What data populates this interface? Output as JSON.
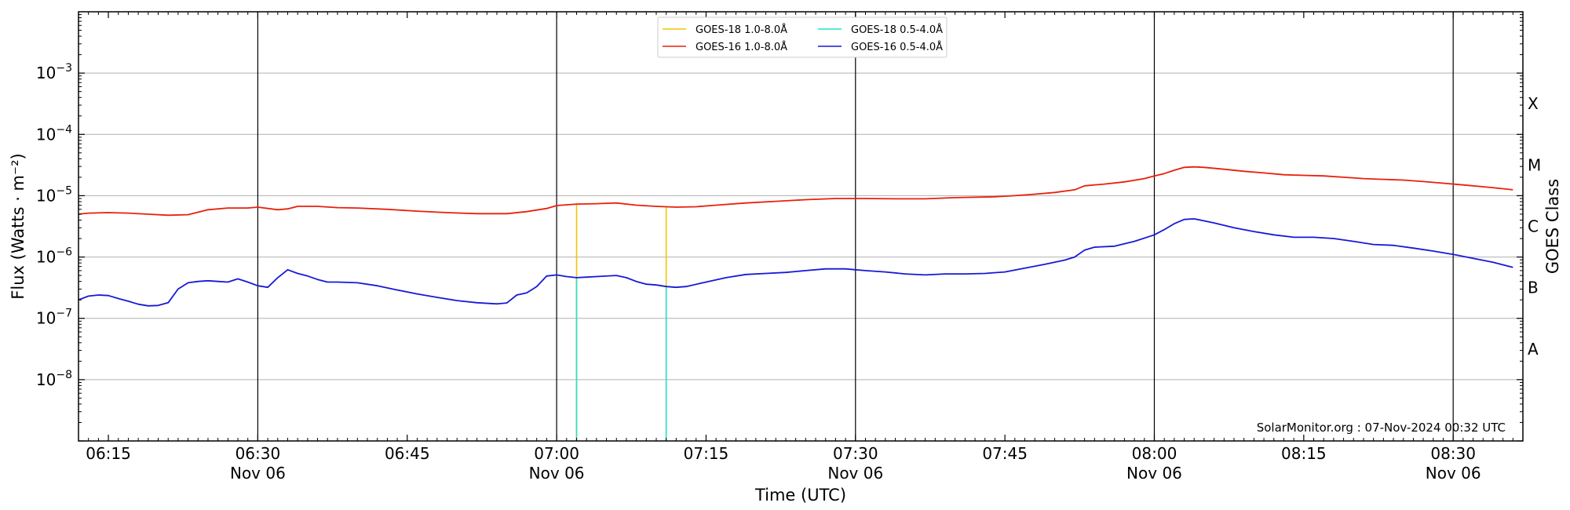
{
  "chart_data": {
    "type": "line",
    "title": "",
    "xlabel": "Time (UTC)",
    "ylabel": "Flux (Watts · m⁻²)",
    "y2label": "GOES Class",
    "yscale": "log",
    "xlim": [
      "06:12",
      "08:37"
    ],
    "ylim": [
      1e-09,
      0.01
    ],
    "grid": {
      "y_major": true,
      "x_day_lines": true
    },
    "legend_position": "top-center",
    "x_ticks": [
      {
        "time": "06:15",
        "label": "06:15",
        "sublabel": ""
      },
      {
        "time": "06:30",
        "label": "06:30",
        "sublabel": "Nov 06"
      },
      {
        "time": "06:45",
        "label": "06:45",
        "sublabel": ""
      },
      {
        "time": "07:00",
        "label": "07:00",
        "sublabel": "Nov 06"
      },
      {
        "time": "07:15",
        "label": "07:15",
        "sublabel": ""
      },
      {
        "time": "07:30",
        "label": "07:30",
        "sublabel": "Nov 06"
      },
      {
        "time": "07:45",
        "label": "07:45",
        "sublabel": ""
      },
      {
        "time": "08:00",
        "label": "08:00",
        "sublabel": "Nov 06"
      },
      {
        "time": "08:15",
        "label": "08:15",
        "sublabel": ""
      },
      {
        "time": "08:30",
        "label": "08:30",
        "sublabel": "Nov 06"
      }
    ],
    "vertical_lines": [
      "06:30",
      "07:00",
      "07:30",
      "08:00",
      "08:30"
    ],
    "y_ticks": [
      {
        "value": 0.001,
        "base": "10",
        "exp": "−3"
      },
      {
        "value": 0.0001,
        "base": "10",
        "exp": "−4"
      },
      {
        "value": 1e-05,
        "base": "10",
        "exp": "−5"
      },
      {
        "value": 1e-06,
        "base": "10",
        "exp": "−6"
      },
      {
        "value": 1e-07,
        "base": "10",
        "exp": "−7"
      },
      {
        "value": 1e-08,
        "base": "10",
        "exp": "−8"
      }
    ],
    "goes_classes": [
      {
        "label": "X",
        "value": 0.000316
      },
      {
        "label": "M",
        "value": 3.16e-05
      },
      {
        "label": "C",
        "value": 3.16e-06
      },
      {
        "label": "B",
        "value": 3.16e-07
      },
      {
        "label": "A",
        "value": 3.16e-08
      }
    ],
    "annotation": "SolarMonitor.org : 07-Nov-2024 00:32 UTC",
    "series": [
      {
        "name": "GOES-18 1.0-8.0Å",
        "color": "#f5c400",
        "kind": "spikes",
        "points": [
          [
            "07:02",
            7.3e-06
          ],
          [
            "07:11",
            6.5e-06
          ]
        ],
        "floor": 1e-09
      },
      {
        "name": "GOES-18 0.5-4.0Å",
        "color": "#22e0d0",
        "kind": "spikes",
        "points": [
          [
            "07:02",
            4.7e-07
          ],
          [
            "07:11",
            3.3e-07
          ]
        ],
        "floor": 1e-09
      },
      {
        "name": "GOES-16 1.0-8.0Å",
        "color": "#e8200c",
        "kind": "line",
        "points": [
          [
            "06:12",
            5e-06
          ],
          [
            "06:13",
            5.2e-06
          ],
          [
            "06:15",
            5.3e-06
          ],
          [
            "06:17",
            5.2e-06
          ],
          [
            "06:19",
            5e-06
          ],
          [
            "06:21",
            4.8e-06
          ],
          [
            "06:23",
            4.9e-06
          ],
          [
            "06:25",
            5.9e-06
          ],
          [
            "06:27",
            6.3e-06
          ],
          [
            "06:29",
            6.3e-06
          ],
          [
            "06:30",
            6.5e-06
          ],
          [
            "06:32",
            5.9e-06
          ],
          [
            "06:33",
            6.1e-06
          ],
          [
            "06:34",
            6.7e-06
          ],
          [
            "06:36",
            6.7e-06
          ],
          [
            "06:38",
            6.4e-06
          ],
          [
            "06:40",
            6.3e-06
          ],
          [
            "06:43",
            6e-06
          ],
          [
            "06:46",
            5.6e-06
          ],
          [
            "06:49",
            5.3e-06
          ],
          [
            "06:52",
            5.1e-06
          ],
          [
            "06:55",
            5.1e-06
          ],
          [
            "06:57",
            5.5e-06
          ],
          [
            "06:59",
            6.2e-06
          ],
          [
            "07:00",
            6.9e-06
          ],
          [
            "07:02",
            7.3e-06
          ],
          [
            "07:04",
            7.4e-06
          ],
          [
            "07:06",
            7.6e-06
          ],
          [
            "07:08",
            7e-06
          ],
          [
            "07:10",
            6.7e-06
          ],
          [
            "07:12",
            6.5e-06
          ],
          [
            "07:14",
            6.6e-06
          ],
          [
            "07:16",
            7e-06
          ],
          [
            "07:19",
            7.6e-06
          ],
          [
            "07:22",
            8.1e-06
          ],
          [
            "07:25",
            8.6e-06
          ],
          [
            "07:28",
            9e-06
          ],
          [
            "07:31",
            9e-06
          ],
          [
            "07:34",
            8.9e-06
          ],
          [
            "07:37",
            8.9e-06
          ],
          [
            "07:40",
            9.3e-06
          ],
          [
            "07:44",
            9.6e-06
          ],
          [
            "07:46",
            1e-05
          ],
          [
            "07:48",
            1.06e-05
          ],
          [
            "07:50",
            1.13e-05
          ],
          [
            "07:52",
            1.25e-05
          ],
          [
            "07:53",
            1.45e-05
          ],
          [
            "07:55",
            1.55e-05
          ],
          [
            "07:57",
            1.68e-05
          ],
          [
            "07:59",
            1.9e-05
          ],
          [
            "08:00",
            2.1e-05
          ],
          [
            "08:01",
            2.3e-05
          ],
          [
            "08:02",
            2.6e-05
          ],
          [
            "08:03",
            2.9e-05
          ],
          [
            "08:04",
            2.95e-05
          ],
          [
            "08:05",
            2.9e-05
          ],
          [
            "08:07",
            2.7e-05
          ],
          [
            "08:09",
            2.5e-05
          ],
          [
            "08:11",
            2.35e-05
          ],
          [
            "08:13",
            2.2e-05
          ],
          [
            "08:15",
            2.15e-05
          ],
          [
            "08:17",
            2.1e-05
          ],
          [
            "08:19",
            2e-05
          ],
          [
            "08:21",
            1.9e-05
          ],
          [
            "08:23",
            1.85e-05
          ],
          [
            "08:25",
            1.8e-05
          ],
          [
            "08:27",
            1.7e-05
          ],
          [
            "08:29",
            1.6e-05
          ],
          [
            "08:31",
            1.5e-05
          ],
          [
            "08:33",
            1.4e-05
          ],
          [
            "08:35",
            1.3e-05
          ],
          [
            "08:36",
            1.25e-05
          ]
        ]
      },
      {
        "name": "GOES-16 0.5-4.0Å",
        "color": "#1818d8",
        "kind": "line",
        "points": [
          [
            "06:12",
            2e-07
          ],
          [
            "06:13",
            2.3e-07
          ],
          [
            "06:14",
            2.4e-07
          ],
          [
            "06:15",
            2.35e-07
          ],
          [
            "06:16",
            2.1e-07
          ],
          [
            "06:17",
            1.9e-07
          ],
          [
            "06:18",
            1.7e-07
          ],
          [
            "06:19",
            1.6e-07
          ],
          [
            "06:20",
            1.62e-07
          ],
          [
            "06:21",
            1.8e-07
          ],
          [
            "06:22",
            3e-07
          ],
          [
            "06:23",
            3.8e-07
          ],
          [
            "06:24",
            4e-07
          ],
          [
            "06:25",
            4.1e-07
          ],
          [
            "06:26",
            4e-07
          ],
          [
            "06:27",
            3.9e-07
          ],
          [
            "06:28",
            4.4e-07
          ],
          [
            "06:29",
            3.9e-07
          ],
          [
            "06:30",
            3.4e-07
          ],
          [
            "06:31",
            3.2e-07
          ],
          [
            "06:32",
            4.6e-07
          ],
          [
            "06:33",
            6.2e-07
          ],
          [
            "06:34",
            5.4e-07
          ],
          [
            "06:35",
            4.9e-07
          ],
          [
            "06:36",
            4.3e-07
          ],
          [
            "06:37",
            3.9e-07
          ],
          [
            "06:38",
            3.9e-07
          ],
          [
            "06:40",
            3.8e-07
          ],
          [
            "06:42",
            3.4e-07
          ],
          [
            "06:44",
            2.9e-07
          ],
          [
            "06:46",
            2.5e-07
          ],
          [
            "06:48",
            2.2e-07
          ],
          [
            "06:50",
            1.95e-07
          ],
          [
            "06:52",
            1.8e-07
          ],
          [
            "06:54",
            1.72e-07
          ],
          [
            "06:55",
            1.78e-07
          ],
          [
            "06:56",
            2.4e-07
          ],
          [
            "06:57",
            2.6e-07
          ],
          [
            "06:58",
            3.3e-07
          ],
          [
            "06:59",
            4.9e-07
          ],
          [
            "07:00",
            5.1e-07
          ],
          [
            "07:01",
            4.8e-07
          ],
          [
            "07:02",
            4.6e-07
          ],
          [
            "07:03",
            4.7e-07
          ],
          [
            "07:04",
            4.8e-07
          ],
          [
            "07:06",
            5e-07
          ],
          [
            "07:07",
            4.6e-07
          ],
          [
            "07:08",
            4e-07
          ],
          [
            "07:09",
            3.6e-07
          ],
          [
            "07:10",
            3.5e-07
          ],
          [
            "07:11",
            3.3e-07
          ],
          [
            "07:12",
            3.2e-07
          ],
          [
            "07:13",
            3.3e-07
          ],
          [
            "07:15",
            3.9e-07
          ],
          [
            "07:17",
            4.6e-07
          ],
          [
            "07:19",
            5.2e-07
          ],
          [
            "07:21",
            5.4e-07
          ],
          [
            "07:23",
            5.6e-07
          ],
          [
            "07:25",
            6e-07
          ],
          [
            "07:27",
            6.4e-07
          ],
          [
            "07:29",
            6.4e-07
          ],
          [
            "07:31",
            6e-07
          ],
          [
            "07:33",
            5.7e-07
          ],
          [
            "07:35",
            5.3e-07
          ],
          [
            "07:37",
            5.1e-07
          ],
          [
            "07:39",
            5.3e-07
          ],
          [
            "07:41",
            5.3e-07
          ],
          [
            "07:43",
            5.4e-07
          ],
          [
            "07:45",
            5.7e-07
          ],
          [
            "07:47",
            6.6e-07
          ],
          [
            "07:49",
            7.6e-07
          ],
          [
            "07:51",
            8.9e-07
          ],
          [
            "07:52",
            1e-06
          ],
          [
            "07:53",
            1.3e-06
          ],
          [
            "07:54",
            1.45e-06
          ],
          [
            "07:56",
            1.5e-06
          ],
          [
            "07:58",
            1.8e-06
          ],
          [
            "08:00",
            2.3e-06
          ],
          [
            "08:01",
            2.8e-06
          ],
          [
            "08:02",
            3.5e-06
          ],
          [
            "08:03",
            4.1e-06
          ],
          [
            "08:04",
            4.2e-06
          ],
          [
            "08:06",
            3.6e-06
          ],
          [
            "08:08",
            3e-06
          ],
          [
            "08:10",
            2.6e-06
          ],
          [
            "08:12",
            2.3e-06
          ],
          [
            "08:14",
            2.1e-06
          ],
          [
            "08:16",
            2.1e-06
          ],
          [
            "08:18",
            2e-06
          ],
          [
            "08:20",
            1.8e-06
          ],
          [
            "08:22",
            1.6e-06
          ],
          [
            "08:24",
            1.55e-06
          ],
          [
            "08:26",
            1.4e-06
          ],
          [
            "08:28",
            1.25e-06
          ],
          [
            "08:30",
            1.1e-06
          ],
          [
            "08:32",
            9.5e-07
          ],
          [
            "08:34",
            8.2e-07
          ],
          [
            "08:36",
            6.8e-07
          ]
        ]
      }
    ],
    "legend_order": [
      0,
      2,
      1,
      3
    ]
  }
}
